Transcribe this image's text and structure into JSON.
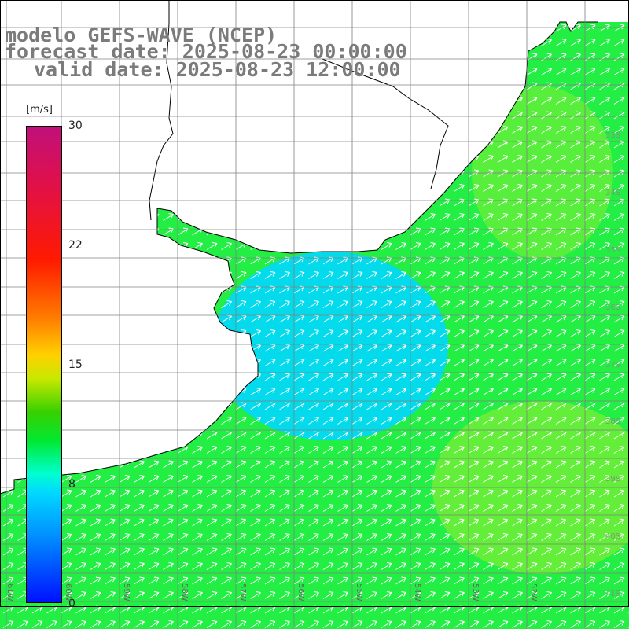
{
  "header": {
    "line1": "modelo GEFS-WAVE (NCEP)",
    "line2": "forecast date: 2025-08-23 00:00:00",
    "line3": "valid date: 2025-08-23 12:00:00"
  },
  "colorbar": {
    "units": "[m/s]",
    "ticks": [
      "30",
      "22",
      "15",
      "8",
      "0"
    ],
    "range": [
      0,
      30
    ]
  },
  "lat_labels": [
    "33S",
    "34S",
    "35S",
    "36S",
    "37S",
    "38S",
    "39S",
    "40S",
    "41S"
  ],
  "lon_labels": [
    "61W",
    "60W",
    "59W",
    "58W",
    "57W",
    "56W",
    "55W",
    "54W",
    "53W",
    "52W"
  ],
  "field": {
    "variable": "wind speed",
    "arrow_direction": "toward northeast",
    "colors": {
      "low": "#00d8ff",
      "mid": "#22ee44",
      "high": "#99ee33"
    }
  }
}
